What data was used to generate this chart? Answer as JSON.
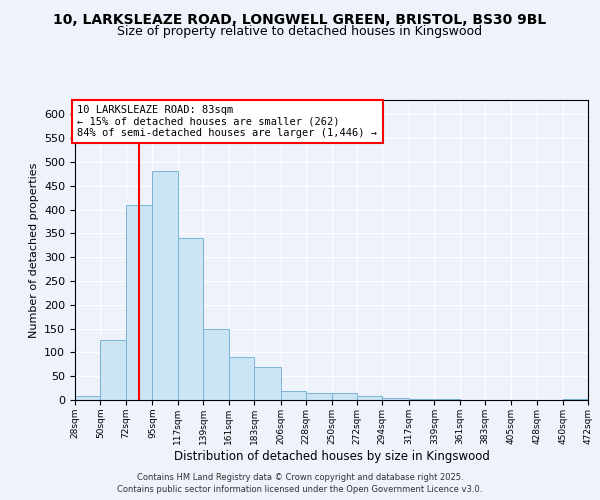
{
  "title_line1": "10, LARKSLEAZE ROAD, LONGWELL GREEN, BRISTOL, BS30 9BL",
  "title_line2": "Size of property relative to detached houses in Kingswood",
  "xlabel": "Distribution of detached houses by size in Kingswood",
  "ylabel": "Number of detached properties",
  "bar_color": "#cce5f5",
  "bar_edge_color": "#7ab4d8",
  "vline_color": "red",
  "vline_x": 83,
  "annotation_title": "10 LARKSLEAZE ROAD: 83sqm",
  "annotation_line1": "← 15% of detached houses are smaller (262)",
  "annotation_line2": "84% of semi-detached houses are larger (1,446) →",
  "footer_line1": "Contains HM Land Registry data © Crown copyright and database right 2025.",
  "footer_line2": "Contains public sector information licensed under the Open Government Licence v3.0.",
  "bin_edges": [
    28,
    50,
    72,
    95,
    117,
    139,
    161,
    183,
    206,
    228,
    250,
    272,
    294,
    317,
    339,
    361,
    383,
    405,
    428,
    450,
    472
  ],
  "bin_heights": [
    8,
    125,
    410,
    480,
    340,
    150,
    90,
    70,
    18,
    15,
    15,
    8,
    5,
    3,
    2,
    0,
    0,
    0,
    0,
    3
  ],
  "ylim": [
    0,
    630
  ],
  "yticks": [
    0,
    50,
    100,
    150,
    200,
    250,
    300,
    350,
    400,
    450,
    500,
    550,
    600
  ],
  "background_color": "#eef2fb",
  "grid_color": "#ffffff",
  "title_fontsize": 10,
  "subtitle_fontsize": 9
}
